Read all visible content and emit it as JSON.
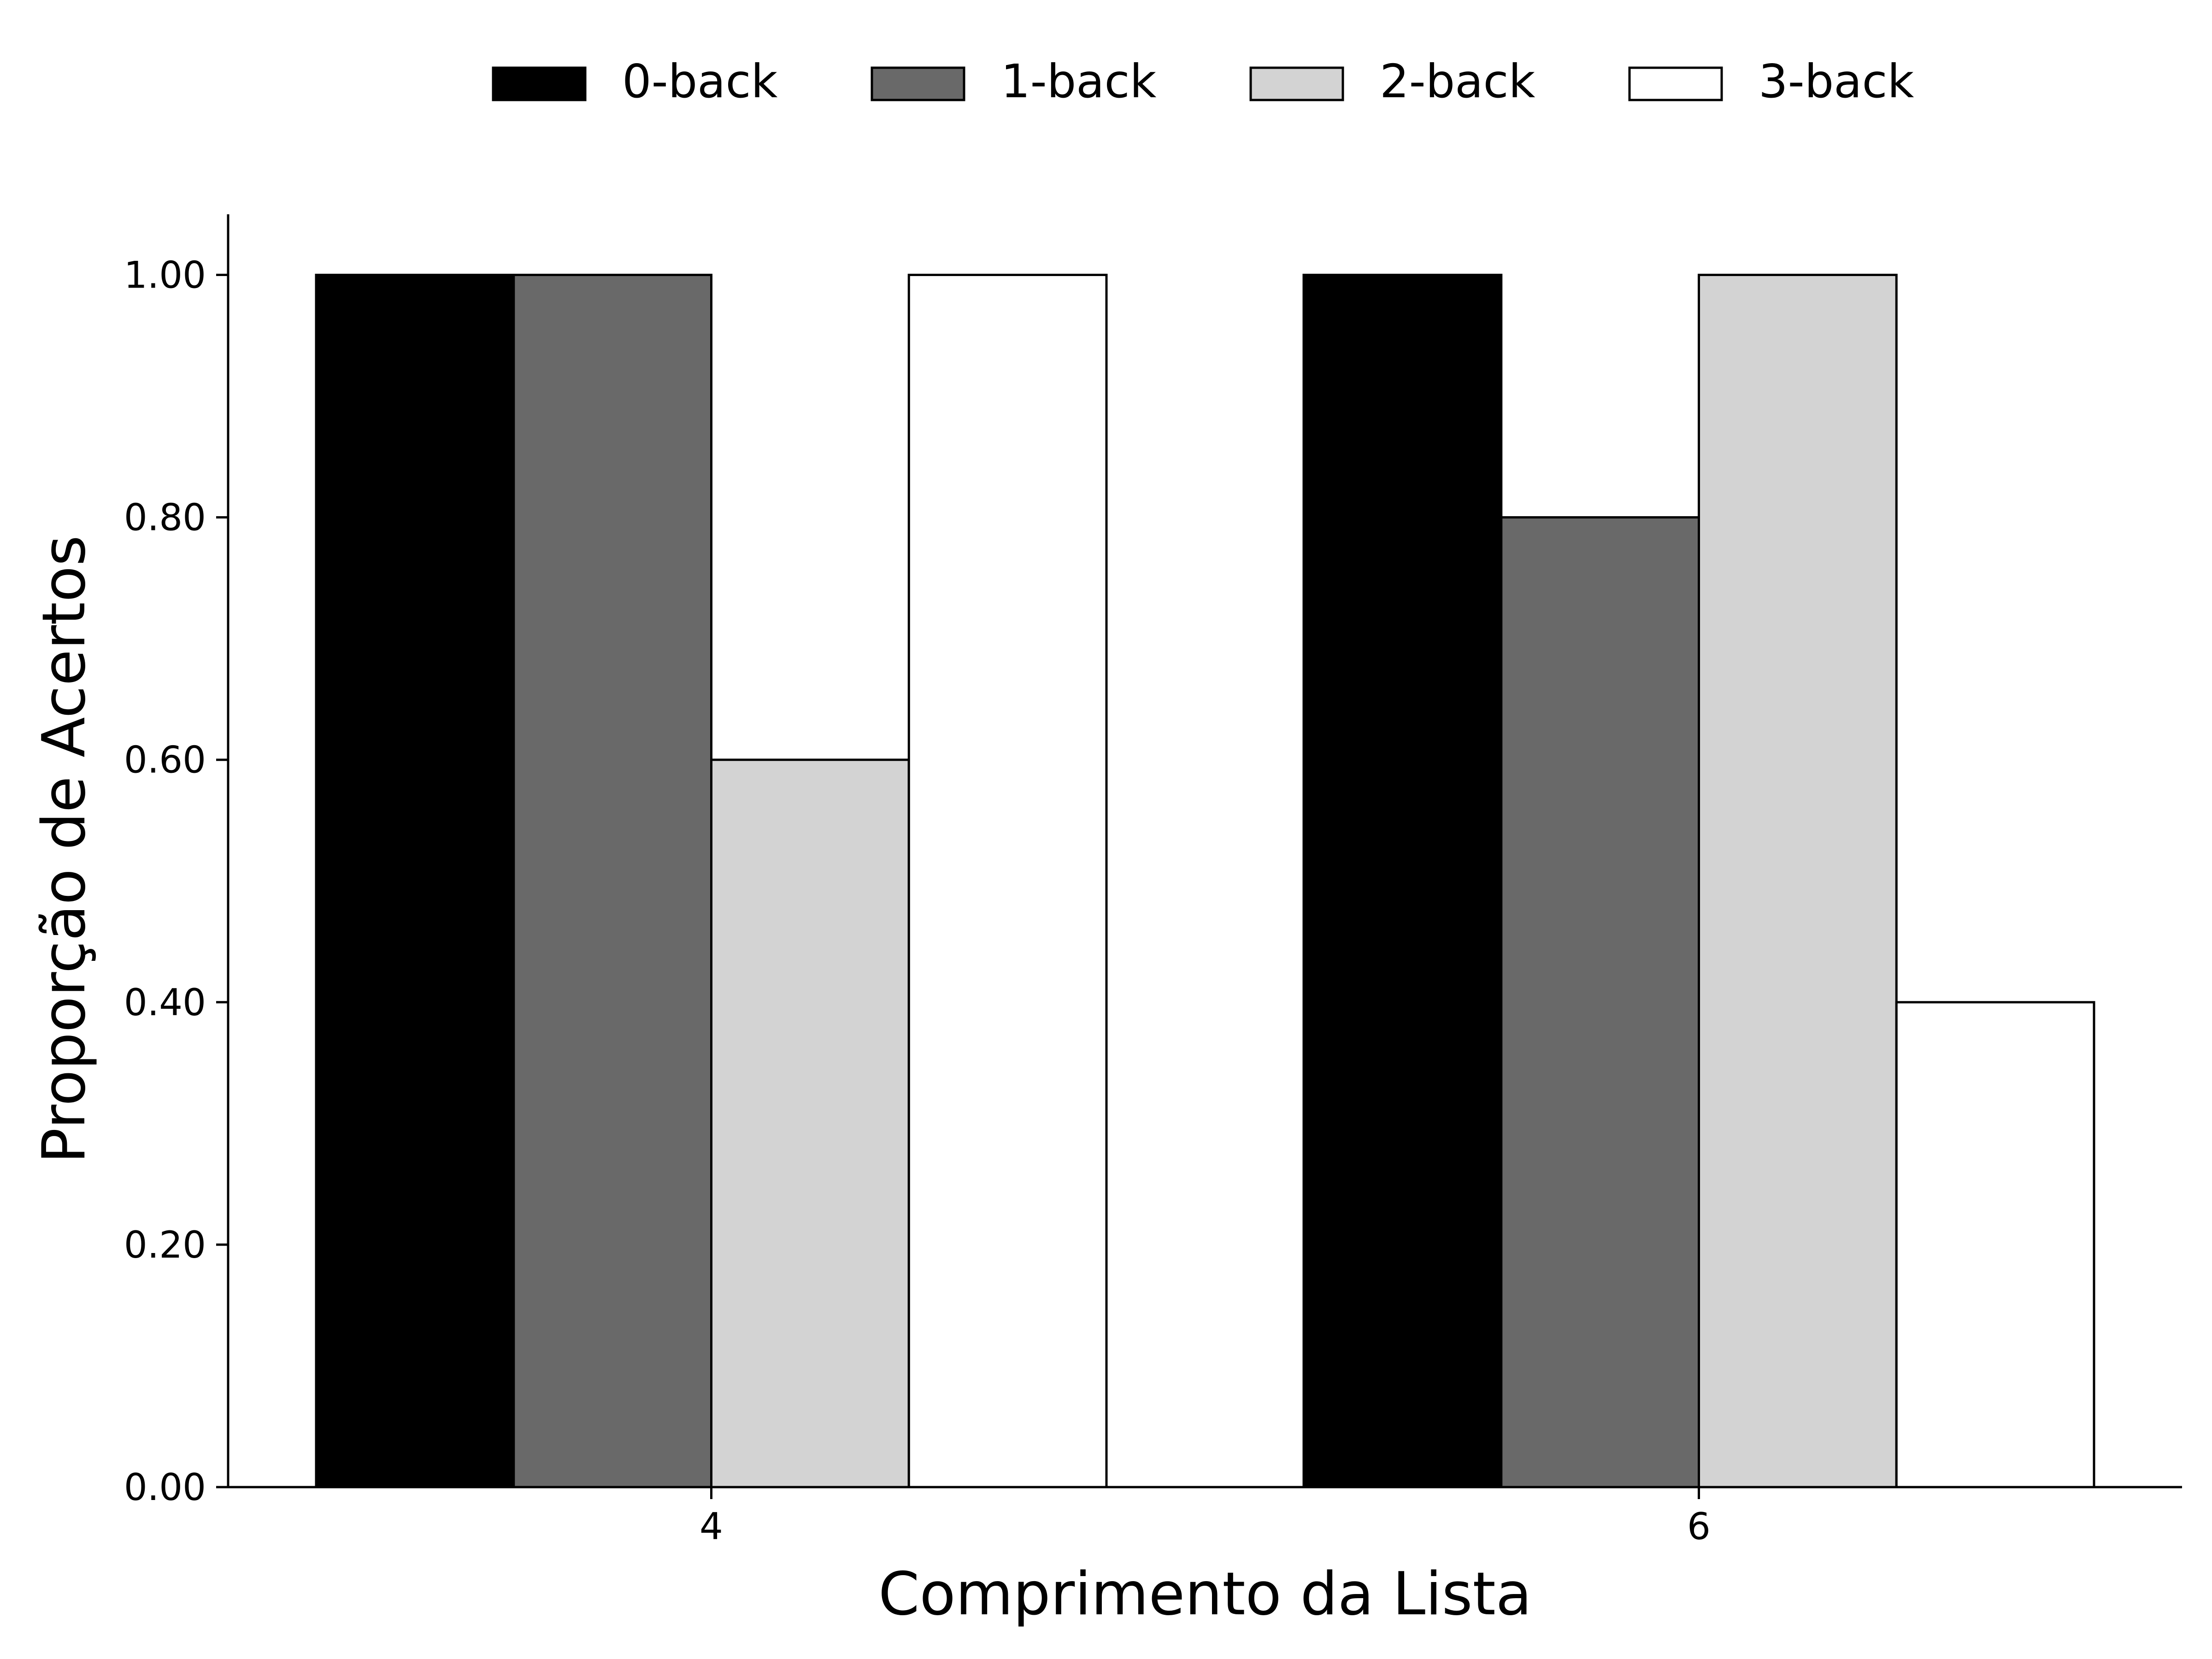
{
  "chart_data": {
    "type": "bar",
    "title": "",
    "xlabel": "Comprimento da Lista",
    "ylabel": "Proporção de Acertos",
    "categories": [
      "4",
      "6"
    ],
    "series": [
      {
        "name": "0-back",
        "color": "#000000",
        "values": [
          1.0,
          1.0
        ]
      },
      {
        "name": "1-back",
        "color": "#696969",
        "values": [
          1.0,
          0.8
        ]
      },
      {
        "name": "2-back",
        "color": "#d3d3d3",
        "values": [
          0.6,
          1.0
        ]
      },
      {
        "name": "3-back",
        "color": "#ffffff",
        "values": [
          1.0,
          0.4
        ]
      }
    ],
    "ylim": [
      0,
      1.05
    ],
    "yticks": [
      {
        "value": 0.0,
        "label": "0.00"
      },
      {
        "value": 0.2,
        "label": "0.20"
      },
      {
        "value": 0.4,
        "label": "0.40"
      },
      {
        "value": 0.6,
        "label": "0.60"
      },
      {
        "value": 0.8,
        "label": "0.80"
      },
      {
        "value": 1.0,
        "label": "1.00"
      }
    ],
    "grid": false,
    "legend": {
      "position": "top-center"
    }
  }
}
